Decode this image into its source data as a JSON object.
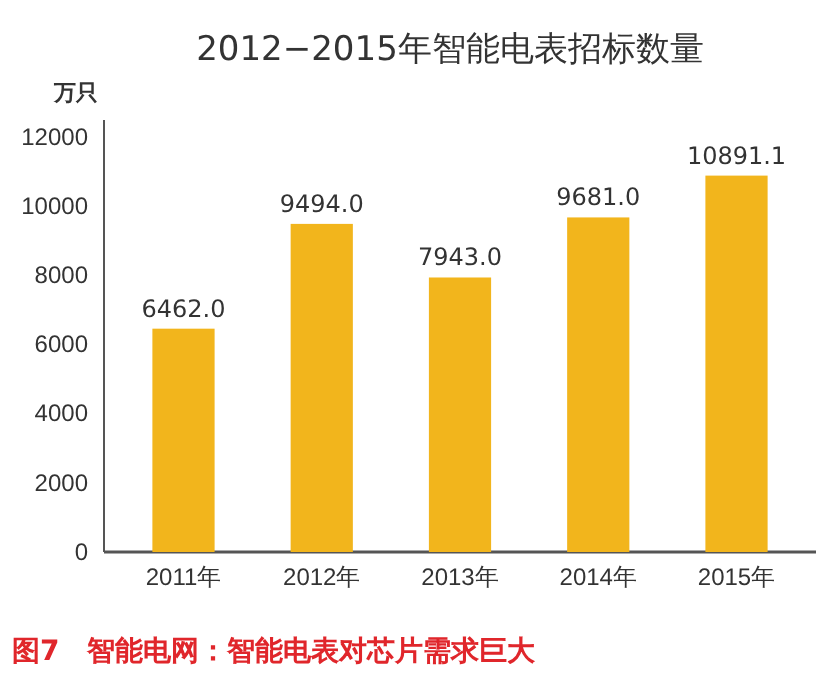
{
  "chart_data": {
    "type": "bar",
    "title": "2012−2015年智能电表招标数量",
    "ylabel": "万只",
    "categories": [
      "2011年",
      "2012年",
      "2013年",
      "2014年",
      "2015年"
    ],
    "values": [
      6462.0,
      9494.0,
      7943.0,
      9681.0,
      10891.1
    ],
    "value_labels": [
      "6462.0",
      "9494.0",
      "7943.0",
      "9681.0",
      "10891.1"
    ],
    "color": "#f2b51c",
    "ylim": [
      0,
      12500
    ],
    "yticks": [
      0,
      2000,
      4000,
      6000,
      8000,
      10000,
      12000
    ],
    "grid": false,
    "annotations": [
      "图7　智能电网：智能电表对芯片需求巨大"
    ]
  }
}
